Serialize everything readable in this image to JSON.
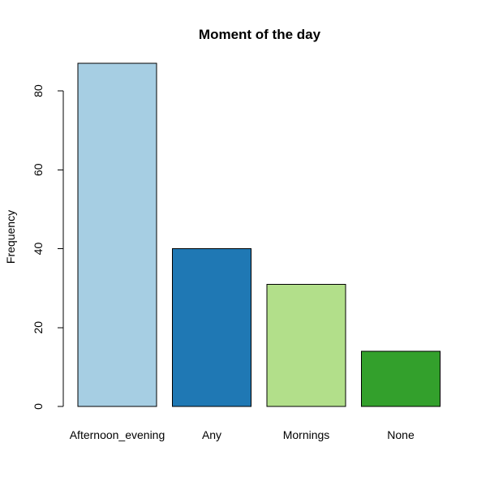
{
  "chart_data": {
    "type": "bar",
    "title": "Moment of the day",
    "xlabel": "",
    "ylabel": "Frequency",
    "categories": [
      "Afternoon_evening",
      "Any",
      "Mornings",
      "None"
    ],
    "values": [
      87,
      40,
      31,
      14
    ],
    "colors": [
      "#A6CEE3",
      "#1F78B4",
      "#B2DF8A",
      "#33A02C"
    ],
    "y_ticks": [
      0,
      20,
      40,
      60,
      80
    ],
    "ylim": [
      0,
      87
    ],
    "grid": false,
    "legend": "none"
  }
}
